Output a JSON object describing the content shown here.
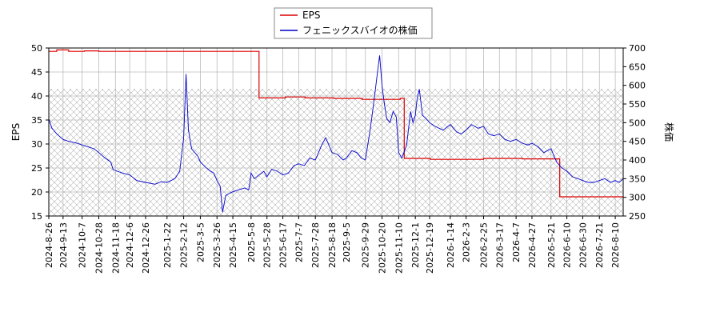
{
  "chart_data": {
    "type": "line",
    "title": "",
    "grid": true,
    "legend_position": "top-center",
    "colors": {
      "eps": "#dd0000",
      "price": "#0000cc",
      "grid": "#bbbbbb",
      "hatch": "#999999"
    },
    "legend": {
      "eps": "EPS",
      "price": "フェニックスバイオの株価"
    },
    "ylabel_left": "EPS",
    "ylabel_right": "株価",
    "y_left": {
      "min": 15,
      "max": 50,
      "ticks": [
        "15",
        "20",
        "25",
        "30",
        "35",
        "40",
        "45",
        "50"
      ]
    },
    "y_right": {
      "min": 250,
      "max": 700,
      "ticks": [
        "250",
        "300",
        "350",
        "400",
        "450",
        "500",
        "550",
        "600",
        "650",
        "700"
      ]
    },
    "x_range": [
      "2024-08-26",
      "2026-08-20"
    ],
    "x_ticks": [
      "2024-8-26",
      "2024-9-13",
      "2024-10-7",
      "2024-10-28",
      "2024-11-18",
      "2024-12-6",
      "2024-12-26",
      "2025-1-22",
      "2025-2-12",
      "2025-3-5",
      "2025-3-26",
      "2025-4-15",
      "2025-5-8",
      "2025-5-28",
      "2025-6-17",
      "2025-7-7",
      "2025-7-28",
      "2025-8-18",
      "2025-9-5",
      "2025-9-29",
      "2025-10-20",
      "2025-11-10",
      "2025-12-1",
      "2025-12-19",
      "2026-1-14",
      "2026-2-3",
      "2026-2-25",
      "2026-3-17",
      "2026-4-7",
      "2026-4-27",
      "2026-5-21",
      "2026-6-10",
      "2026-6-30",
      "2026-7-21",
      "2026-8-10"
    ],
    "hatch_regions": [
      {
        "start": "2024-08-26",
        "end": "2026-08-20",
        "y_top": 41.5
      }
    ],
    "series": [
      {
        "name": "EPS",
        "axis": "left",
        "step": true,
        "x": [
          "2024-08-26",
          "2024-09-05",
          "2024-09-20",
          "2024-10-10",
          "2024-10-28",
          "2024-11-15",
          "2025-05-18",
          "2025-06-20",
          "2025-07-15",
          "2025-08-20",
          "2025-09-25",
          "2025-11-12",
          "2025-11-17",
          "2025-12-20",
          "2026-02-25",
          "2026-04-15",
          "2026-05-25",
          "2026-06-01",
          "2026-08-20"
        ],
        "values": [
          49.3,
          49.6,
          49.3,
          49.4,
          49.3,
          49.3,
          39.6,
          39.8,
          39.6,
          39.5,
          39.3,
          39.5,
          27.0,
          26.8,
          27.0,
          26.9,
          26.9,
          19.0,
          18.8
        ]
      },
      {
        "name": "フェニックスバイオの株価",
        "axis": "right",
        "step": false,
        "x": [
          "2024-08-26",
          "2024-08-30",
          "2024-09-05",
          "2024-09-13",
          "2024-09-20",
          "2024-10-01",
          "2024-10-07",
          "2024-10-15",
          "2024-10-22",
          "2024-10-28",
          "2024-11-05",
          "2024-11-12",
          "2024-11-15",
          "2024-11-20",
          "2024-11-27",
          "2024-12-06",
          "2024-12-15",
          "2024-12-26",
          "2025-01-07",
          "2025-01-15",
          "2025-01-22",
          "2025-02-01",
          "2025-02-07",
          "2025-02-12",
          "2025-02-15",
          "2025-02-18",
          "2025-02-22",
          "2025-02-26",
          "2025-03-02",
          "2025-03-05",
          "2025-03-12",
          "2025-03-18",
          "2025-03-22",
          "2025-03-26",
          "2025-03-30",
          "2025-04-02",
          "2025-04-06",
          "2025-04-10",
          "2025-04-15",
          "2025-04-22",
          "2025-04-30",
          "2025-05-05",
          "2025-05-08",
          "2025-05-12",
          "2025-05-18",
          "2025-05-24",
          "2025-05-28",
          "2025-06-03",
          "2025-06-10",
          "2025-06-17",
          "2025-06-24",
          "2025-07-01",
          "2025-07-07",
          "2025-07-14",
          "2025-07-21",
          "2025-07-28",
          "2025-08-01",
          "2025-08-05",
          "2025-08-10",
          "2025-08-18",
          "2025-08-25",
          "2025-09-01",
          "2025-09-05",
          "2025-09-12",
          "2025-09-18",
          "2025-09-24",
          "2025-09-29",
          "2025-10-05",
          "2025-10-10",
          "2025-10-14",
          "2025-10-17",
          "2025-10-20",
          "2025-10-23",
          "2025-10-26",
          "2025-10-30",
          "2025-11-03",
          "2025-11-07",
          "2025-11-10",
          "2025-11-14",
          "2025-11-20",
          "2025-11-25",
          "2025-11-28",
          "2025-12-01",
          "2025-12-03",
          "2025-12-06",
          "2025-12-10",
          "2025-12-15",
          "2025-12-19",
          "2025-12-26",
          "2026-01-05",
          "2026-01-14",
          "2026-01-22",
          "2026-01-28",
          "2026-02-03",
          "2026-02-10",
          "2026-02-18",
          "2026-02-25",
          "2026-03-03",
          "2026-03-10",
          "2026-03-17",
          "2026-03-24",
          "2026-03-31",
          "2026-04-07",
          "2026-04-15",
          "2026-04-22",
          "2026-04-27",
          "2026-05-05",
          "2026-05-12",
          "2026-05-21",
          "2026-05-28",
          "2026-06-03",
          "2026-06-10",
          "2026-06-17",
          "2026-06-24",
          "2026-06-30",
          "2026-07-07",
          "2026-07-14",
          "2026-07-21",
          "2026-07-28",
          "2026-08-04",
          "2026-08-10",
          "2026-08-15",
          "2026-08-20"
        ],
        "values": [
          510,
          485,
          470,
          455,
          450,
          445,
          440,
          435,
          430,
          420,
          405,
          395,
          375,
          370,
          365,
          360,
          345,
          340,
          335,
          342,
          340,
          350,
          370,
          460,
          630,
          480,
          430,
          420,
          410,
          395,
          380,
          370,
          365,
          345,
          330,
          260,
          305,
          310,
          315,
          320,
          325,
          320,
          365,
          350,
          360,
          370,
          355,
          375,
          370,
          360,
          365,
          385,
          390,
          385,
          405,
          400,
          420,
          440,
          460,
          420,
          415,
          400,
          405,
          425,
          420,
          405,
          400,
          480,
          560,
          630,
          680,
          600,
          550,
          510,
          500,
          530,
          515,
          420,
          405,
          440,
          530,
          500,
          520,
          560,
          590,
          520,
          510,
          500,
          490,
          480,
          495,
          475,
          470,
          480,
          495,
          485,
          490,
          470,
          465,
          470,
          455,
          450,
          455,
          445,
          440,
          445,
          435,
          420,
          430,
          395,
          380,
          370,
          355,
          350,
          345,
          340,
          340,
          345,
          350,
          340,
          345,
          340,
          350
        ]
      }
    ]
  }
}
